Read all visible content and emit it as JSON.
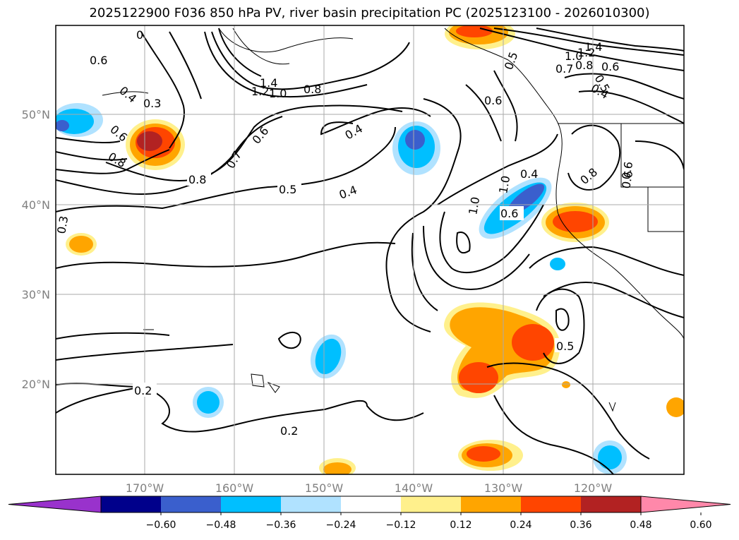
{
  "title": "2025122900 F036 850 hPa PV, river basin precipitation PC (2025123100 - 2026010300)",
  "map": {
    "lon_labels": [
      "170°W",
      "160°W",
      "150°W",
      "140°W",
      "130°W",
      "120°W"
    ],
    "lat_labels": [
      "50°N",
      "40°N",
      "30°N",
      "20°N"
    ]
  },
  "contour_labels": [
    "0.6",
    "0.4",
    "0.3",
    "0.6",
    "0.8",
    "0.8",
    "0.7",
    "0.6",
    "1.4",
    "1.2",
    "1.0",
    "0.8",
    "0.5",
    "0.4",
    "0.4",
    "0.3",
    "0.2",
    "0.2",
    "0.6",
    "0.5",
    "1.4",
    "1.2",
    "1.0",
    "0.8",
    "0.7",
    "0.6",
    "0.4",
    "0.5",
    "0.6",
    "0.4",
    "0.8",
    "0.6",
    "1.0",
    "1.0",
    "0.6",
    "0.5",
    "0"
  ],
  "colorbar": {
    "tick_labels": [
      "−0.60",
      "−0.48",
      "−0.36",
      "−0.24",
      "−0.12",
      "0.12",
      "0.24",
      "0.36",
      "0.48",
      "0.60"
    ],
    "colors": [
      "#9932cc",
      "#00008b",
      "#3a5fcd",
      "#00bfff",
      "#b0e2ff",
      "#ffffff",
      "#fff08c",
      "#ffa500",
      "#ff4500",
      "#b22222",
      "#ff88aa"
    ]
  }
}
